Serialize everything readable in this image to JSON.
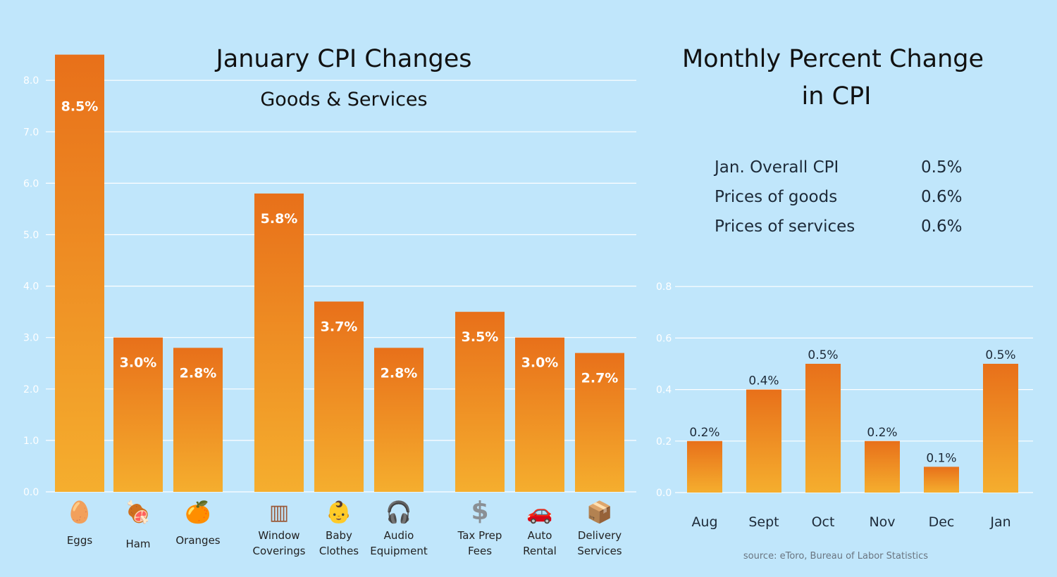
{
  "left_chart": {
    "title": "January CPI Changes",
    "subtitle": "Goods & Services",
    "y_ticks": [
      "0.0",
      "1.0",
      "2.0",
      "3.0",
      "4.0",
      "5.0",
      "6.0",
      "7.0",
      "8.0"
    ]
  },
  "right_chart": {
    "title_line1": "Monthly Percent Change",
    "title_line2": "in CPI",
    "y_ticks": [
      "0.0",
      "0.2",
      "0.4",
      "0.6",
      "0.8"
    ]
  },
  "summary": [
    {
      "label": "Jan. Overall CPI",
      "value": "0.5%"
    },
    {
      "label": "Prices of goods",
      "value": "0.6%"
    },
    {
      "label": "Prices of services",
      "value": "0.6%"
    }
  ],
  "source": "source: eToro, Bureau of Labor Statistics",
  "colors": {
    "background": "#c0e6fb",
    "bar_top": "#e8701a",
    "bar_bottom": "#f5ae2e",
    "grid": "#ffffff",
    "tick_text": "#ffffff",
    "title_text": "#111111",
    "label_text": "#222222",
    "source_text": "#6a7580"
  },
  "chart_data": [
    {
      "type": "bar",
      "title": "January CPI Changes",
      "subtitle": "Goods & Services",
      "ylim": [
        0,
        8.5
      ],
      "categories": [
        {
          "label": [
            "Eggs"
          ],
          "icon": "egg-icon",
          "glyph": "🥚",
          "value": 8.5,
          "value_label": "8.5%"
        },
        {
          "label": [
            "Ham"
          ],
          "icon": "ham-icon",
          "glyph": "🍖",
          "value": 3.0,
          "value_label": "3.0%"
        },
        {
          "label": [
            "Oranges"
          ],
          "icon": "orange-icon",
          "glyph": "🍊",
          "value": 2.8,
          "value_label": "2.8%"
        },
        {
          "label": [
            "Window",
            "Coverings"
          ],
          "icon": "window-icon",
          "glyph": "▥",
          "value": 5.8,
          "value_label": "5.8%"
        },
        {
          "label": [
            "Baby",
            "Clothes"
          ],
          "icon": "baby-icon",
          "glyph": "👶",
          "value": 3.7,
          "value_label": "3.7%"
        },
        {
          "label": [
            "Audio",
            "Equipment"
          ],
          "icon": "headphones-icon",
          "glyph": "🎧",
          "value": 2.8,
          "value_label": "2.8%"
        },
        {
          "label": [
            "Tax Prep",
            "Fees"
          ],
          "icon": "dollar-icon",
          "glyph": "$",
          "value": 3.5,
          "value_label": "3.5%"
        },
        {
          "label": [
            "Auto",
            "Rental"
          ],
          "icon": "car-icon",
          "glyph": "🚗",
          "value": 3.0,
          "value_label": "3.0%"
        },
        {
          "label": [
            "Delivery",
            "Services"
          ],
          "icon": "package-icon",
          "glyph": "📦",
          "value": 2.7,
          "value_label": "2.7%"
        }
      ],
      "grid": true
    },
    {
      "type": "bar",
      "title": "Monthly Percent Change in CPI",
      "ylim": [
        0,
        0.8
      ],
      "categories": [
        "Aug",
        "Sept",
        "Oct",
        "Nov",
        "Dec",
        "Jan"
      ],
      "values": [
        0.2,
        0.4,
        0.5,
        0.2,
        0.1,
        0.5
      ],
      "value_labels": [
        "0.2%",
        "0.4%",
        "0.5%",
        "0.2%",
        "0.1%",
        "0.5%"
      ],
      "grid": true
    }
  ]
}
